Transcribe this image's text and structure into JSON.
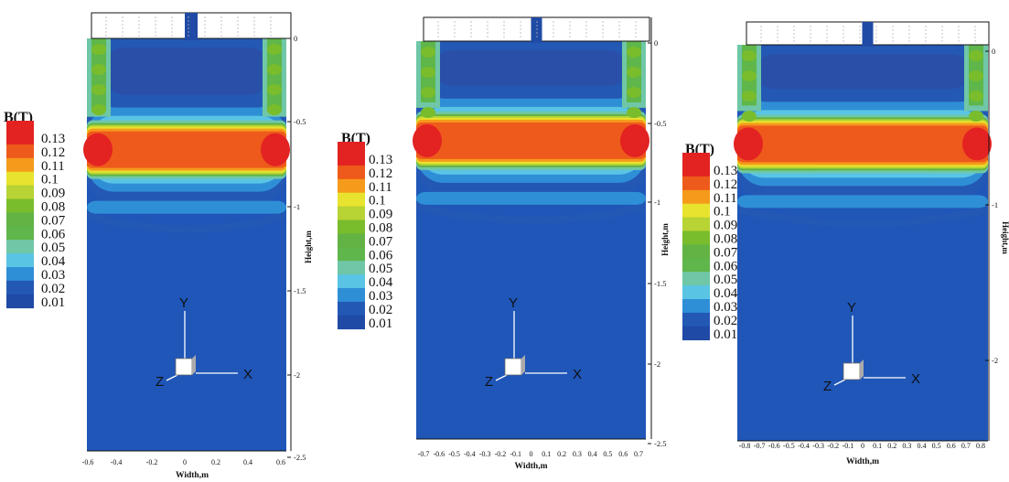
{
  "colors": {
    "legend": [
      "#1f4aa5",
      "#2458b5",
      "#2f8fd6",
      "#59c4e4",
      "#6fc7a7",
      "#5fb64a",
      "#62b343",
      "#79bd2d",
      "#b7d334",
      "#e8e32e",
      "#f59a1b",
      "#ee5a1b",
      "#e32222"
    ],
    "background_field": "#1f56b8"
  },
  "chart_data": [
    {
      "type": "heatmap",
      "legend_title": "B(T)",
      "legend_values": [
        "0.13",
        "0.12",
        "0.11",
        "0.1",
        "0.09",
        "0.08",
        "0.07",
        "0.06",
        "0.05",
        "0.04",
        "0.03",
        "0.02",
        "0.01"
      ],
      "xlabel": "Width,m",
      "ylabel": "Height,m",
      "xticks": [
        "-0.6",
        "-0.4",
        "-0.2",
        "0",
        "0.2",
        "0.4",
        "0.6"
      ],
      "yticks": [
        "0",
        "-0.5",
        "-1",
        "-1.5",
        "-2",
        "-2.5"
      ],
      "xlim": [
        -0.6,
        0.6
      ],
      "ylim": [
        -2.55,
        0.1
      ],
      "band_center_y": -0.65,
      "max_value": 0.13,
      "axes_labels": [
        "Y",
        "Z",
        "X"
      ]
    },
    {
      "type": "heatmap",
      "legend_title": "B(T)",
      "legend_values": [
        "0.13",
        "0.12",
        "0.11",
        "0.1",
        "0.09",
        "0.08",
        "0.07",
        "0.06",
        "0.05",
        "0.04",
        "0.03",
        "0.02",
        "0.01"
      ],
      "xlabel": "Width,m",
      "ylabel": "Height,m",
      "xticks": [
        "-0.7",
        "-0.6",
        "-0.5",
        "-0.4",
        "-0.3",
        "-0.2",
        "-0.1",
        "0",
        "0.1",
        "0.2",
        "0.3",
        "0.4",
        "0.5",
        "0.6",
        "0.7"
      ],
      "yticks": [
        "0",
        "-0.5",
        "-1",
        "-1.5",
        "-2",
        "-2.5"
      ],
      "xlim": [
        -0.7,
        0.7
      ],
      "ylim": [
        -2.55,
        0.1
      ],
      "band_center_y": -0.6,
      "max_value": 0.13,
      "axes_labels": [
        "Y",
        "Z",
        "X"
      ]
    },
    {
      "type": "heatmap",
      "legend_title": "B(T)",
      "legend_values": [
        "0.13",
        "0.12",
        "0.11",
        "0.1",
        "0.09",
        "0.08",
        "0.07",
        "0.06",
        "0.05",
        "0.04",
        "0.03",
        "0.02",
        "0.01"
      ],
      "xlabel": "Width,m",
      "ylabel": "Height,m",
      "xticks": [
        "-0.8",
        "-0.7",
        "-0.6",
        "-0.5",
        "-0.4",
        "-0.3",
        "-0.2",
        "-0.1",
        "0",
        "0.1",
        "0.2",
        "0.3",
        "0.4",
        "0.5",
        "0.6",
        "0.7",
        "0.8"
      ],
      "yticks": [
        "0",
        "-1",
        "-2"
      ],
      "xlim": [
        -0.8,
        0.8
      ],
      "ylim": [
        -2.55,
        0.1
      ],
      "band_center_y": -0.6,
      "max_value": 0.13,
      "axes_labels": [
        "Y",
        "Z",
        "X"
      ]
    }
  ]
}
